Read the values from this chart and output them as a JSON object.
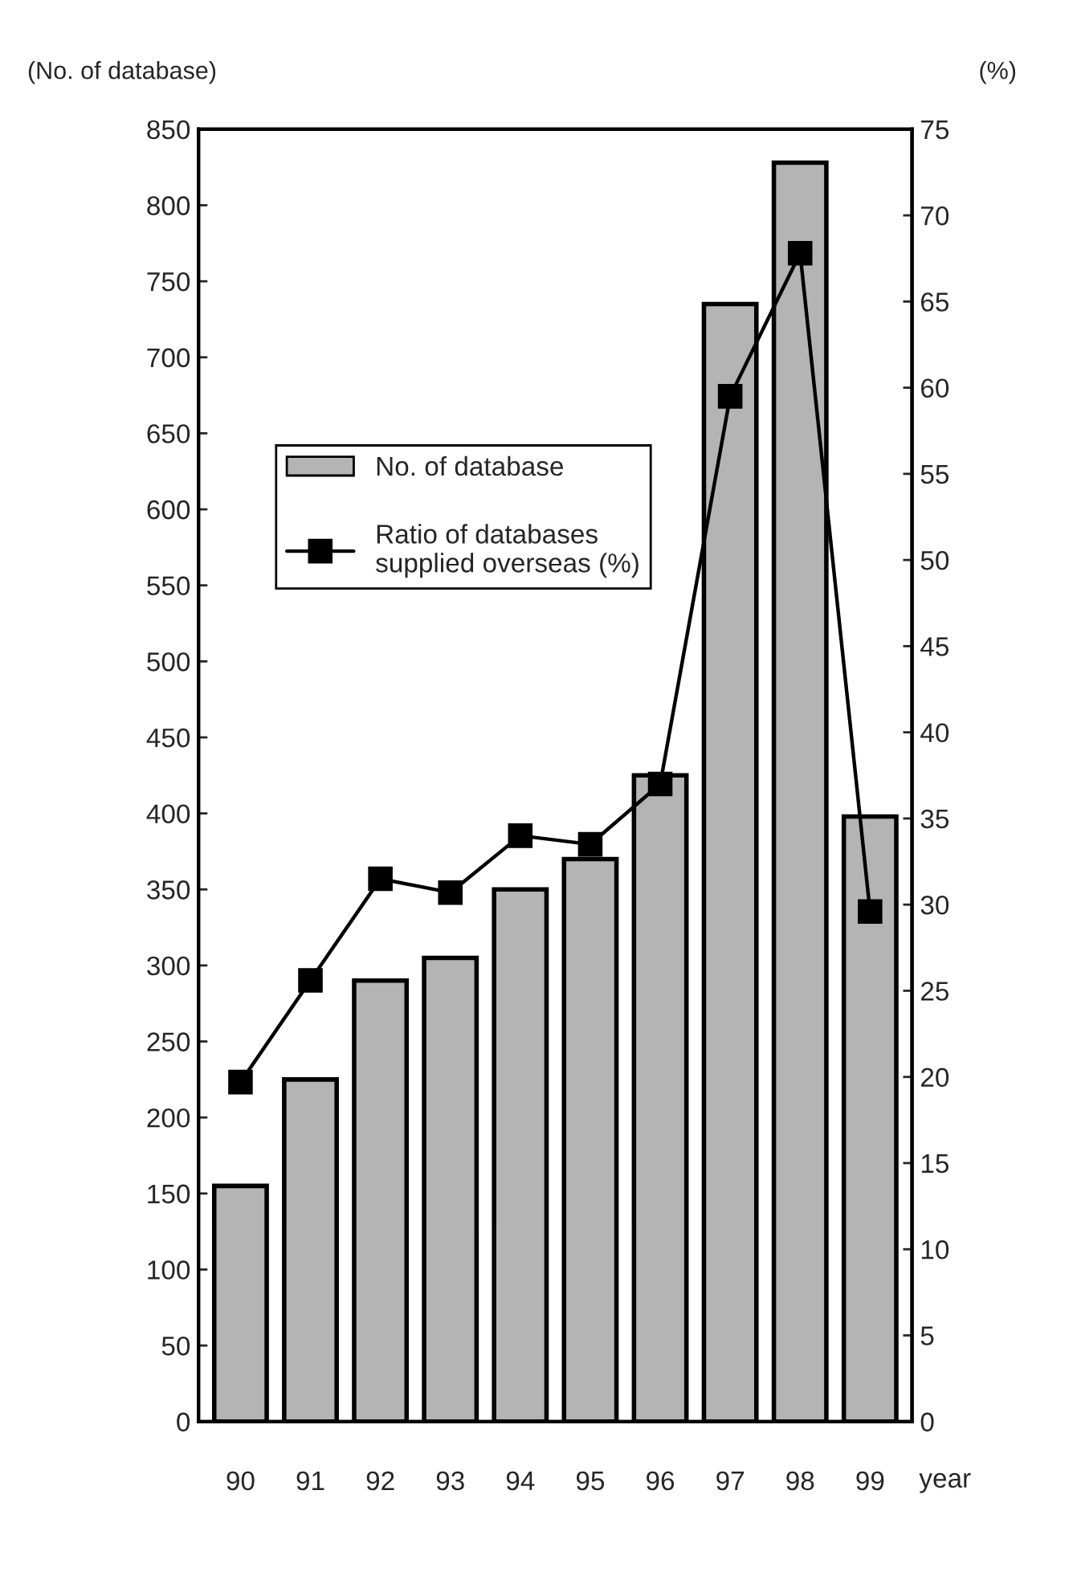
{
  "chart_data": {
    "type": "bar",
    "ylabel": "(No. of database)",
    "y2label": "(%)",
    "xlabel": "year",
    "categories": [
      "90",
      "91",
      "92",
      "93",
      "94",
      "95",
      "96",
      "97",
      "98",
      "99"
    ],
    "series": [
      {
        "name": "No. of database",
        "color": "#b4b4b4",
        "values": [
          155,
          225,
          290,
          305,
          350,
          370,
          425,
          735,
          828,
          398
        ]
      },
      {
        "name": "Ratio of databases\nsupplied overseas (%)",
        "type": "line",
        "axis": "y2",
        "color": "#000000",
        "marker": "square",
        "values": [
          19.7,
          25.6,
          31.5,
          30.7,
          34.0,
          33.5,
          37.0,
          59.5,
          67.8,
          29.6
        ]
      }
    ],
    "ylim": [
      0,
      850
    ],
    "yticks": [
      0,
      50,
      100,
      150,
      200,
      250,
      300,
      350,
      400,
      450,
      500,
      550,
      600,
      650,
      700,
      750,
      800,
      850
    ],
    "y2lim": [
      0,
      75
    ],
    "y2ticks": [
      0,
      5,
      10,
      15,
      20,
      25,
      30,
      35,
      40,
      45,
      50,
      55,
      60,
      65,
      70,
      75
    ],
    "grid": false,
    "legend": "center left"
  }
}
